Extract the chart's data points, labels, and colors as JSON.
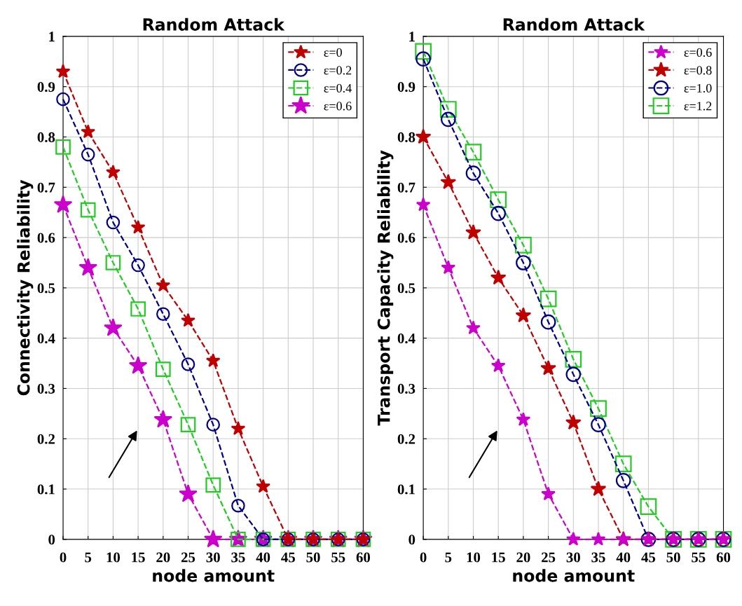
{
  "chart_data": [
    {
      "type": "line",
      "title": "Random Attack",
      "xlabel": "node amount",
      "ylabel": "Connectivity Reliability",
      "x": [
        0,
        5,
        10,
        15,
        20,
        25,
        30,
        35,
        40,
        45,
        50,
        55,
        60
      ],
      "xlim": [
        0,
        60
      ],
      "ylim": [
        0,
        1
      ],
      "xticks": [
        0,
        5,
        10,
        15,
        20,
        25,
        30,
        35,
        40,
        45,
        50,
        55,
        60
      ],
      "yticks": [
        0,
        0.1,
        0.2,
        0.3,
        0.4,
        0.5,
        0.6,
        0.7,
        0.8,
        0.9,
        1
      ],
      "grid": true,
      "legend": "top right",
      "line_style": "dashed",
      "series": [
        {
          "name": "ε=0",
          "color": "#c00000",
          "marker": "star",
          "values": [
            0.93,
            0.81,
            0.73,
            0.62,
            0.505,
            0.435,
            0.355,
            0.22,
            0.105,
            0,
            0,
            0,
            0
          ]
        },
        {
          "name": "ε=0.2",
          "color": "#00008b",
          "marker": "circle",
          "values": [
            0.875,
            0.765,
            0.63,
            0.545,
            0.448,
            0.348,
            0.228,
            0.067,
            0,
            0,
            0,
            0,
            0
          ]
        },
        {
          "name": "ε=0.4",
          "color": "#22cc22",
          "marker": "square",
          "values": [
            0.78,
            0.655,
            0.55,
            0.458,
            0.338,
            0.228,
            0.108,
            0,
            0,
            0,
            0,
            0,
            0
          ]
        },
        {
          "name": "ε=0.6",
          "color": "#cc00cc",
          "marker": "star",
          "values": [
            0.665,
            0.54,
            0.42,
            0.345,
            0.238,
            0.09,
            0,
            0,
            0,
            0,
            0,
            0,
            0
          ]
        }
      ]
    },
    {
      "type": "line",
      "title": "Random Attack",
      "xlabel": "node amount",
      "ylabel": "Transport Capacity Reliability",
      "x": [
        0,
        5,
        10,
        15,
        20,
        25,
        30,
        35,
        40,
        45,
        50,
        55,
        60
      ],
      "xlim": [
        0,
        60
      ],
      "ylim": [
        0,
        1
      ],
      "xticks": [
        0,
        5,
        10,
        15,
        20,
        25,
        30,
        35,
        40,
        45,
        50,
        55,
        60
      ],
      "yticks": [
        0,
        0.1,
        0.2,
        0.3,
        0.4,
        0.5,
        0.6,
        0.7,
        0.8,
        0.9,
        1
      ],
      "grid": true,
      "legend": "top right",
      "line_style": "dashed",
      "series": [
        {
          "name": "ε=0.6",
          "color": "#cc00cc",
          "marker": "star",
          "values": [
            0.665,
            0.54,
            0.42,
            0.345,
            0.238,
            0.09,
            0,
            0,
            0,
            0,
            0,
            0,
            0
          ]
        },
        {
          "name": "ε=0.8",
          "color": "#c00000",
          "marker": "star",
          "values": [
            0.8,
            0.71,
            0.61,
            0.52,
            0.445,
            0.34,
            0.232,
            0.1,
            0,
            0,
            0,
            0,
            0
          ]
        },
        {
          "name": "ε=1.0",
          "color": "#00008b",
          "marker": "circle",
          "values": [
            0.955,
            0.835,
            0.728,
            0.648,
            0.55,
            0.432,
            0.328,
            0.228,
            0.117,
            0,
            0,
            0,
            0
          ]
        },
        {
          "name": "ε=1.2",
          "color": "#22cc22",
          "marker": "square",
          "values": [
            0.97,
            0.855,
            0.77,
            0.675,
            0.585,
            0.478,
            0.358,
            0.26,
            0.15,
            0.065,
            0,
            0,
            0
          ]
        }
      ]
    }
  ]
}
